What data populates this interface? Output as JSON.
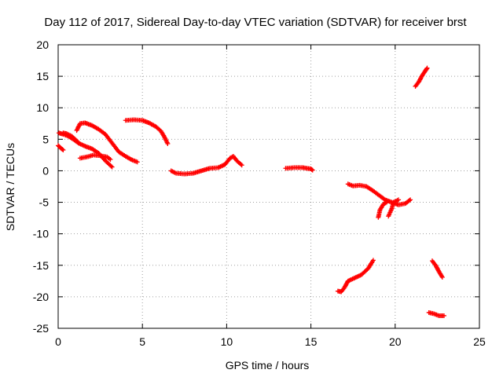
{
  "chart_data": {
    "type": "scatter",
    "title": "Day 112 of 2017, Sidereal Day-to-day VTEC variation (SDTVAR) for receiver brst",
    "xlabel": "GPS time / hours",
    "ylabel": "SDTVAR / TECUs",
    "xlim": [
      0,
      25
    ],
    "ylim": [
      -25,
      20
    ],
    "x_ticks": [
      0,
      5,
      10,
      15,
      20,
      25
    ],
    "y_ticks": [
      -25,
      -20,
      -15,
      -10,
      -5,
      0,
      5,
      10,
      15,
      20
    ],
    "grid": true,
    "legend": "none",
    "marker": "plus",
    "series_color": "#ff0000",
    "arcs": [
      [
        [
          0.0,
          4.0
        ],
        [
          0.2,
          3.5
        ],
        [
          0.3,
          3.3
        ]
      ],
      [
        [
          0.05,
          6.0
        ],
        [
          0.3,
          5.8
        ],
        [
          0.6,
          5.5
        ],
        [
          0.9,
          5.0
        ],
        [
          1.2,
          4.4
        ],
        [
          1.6,
          3.9
        ],
        [
          2.0,
          3.5
        ],
        [
          2.4,
          2.8
        ],
        [
          2.8,
          1.6
        ],
        [
          3.2,
          0.6
        ]
      ],
      [
        [
          0.3,
          6.0
        ],
        [
          0.5,
          5.9
        ],
        [
          0.8,
          5.5
        ],
        [
          1.0,
          5.0
        ],
        [
          1.2,
          4.5
        ]
      ],
      [
        [
          1.1,
          6.4
        ],
        [
          1.3,
          7.5
        ],
        [
          1.6,
          7.6
        ],
        [
          2.0,
          7.2
        ],
        [
          2.4,
          6.6
        ],
        [
          2.8,
          5.8
        ],
        [
          3.2,
          4.4
        ],
        [
          3.6,
          3.0
        ],
        [
          4.0,
          2.3
        ],
        [
          4.4,
          1.7
        ],
        [
          4.7,
          1.4
        ]
      ],
      [
        [
          1.3,
          2.0
        ],
        [
          1.7,
          2.2
        ],
        [
          2.1,
          2.5
        ],
        [
          2.5,
          2.4
        ],
        [
          2.9,
          2.2
        ],
        [
          3.1,
          1.8
        ]
      ],
      [
        [
          4.0,
          8.0
        ],
        [
          4.5,
          8.1
        ],
        [
          5.0,
          8.0
        ],
        [
          5.4,
          7.6
        ],
        [
          5.8,
          7.0
        ],
        [
          6.1,
          6.3
        ],
        [
          6.3,
          5.4
        ],
        [
          6.5,
          4.3
        ]
      ],
      [
        [
          6.7,
          0.0
        ],
        [
          7.0,
          -0.4
        ],
        [
          7.5,
          -0.5
        ],
        [
          8.0,
          -0.4
        ],
        [
          8.5,
          0.0
        ],
        [
          9.0,
          0.4
        ],
        [
          9.5,
          0.5
        ],
        [
          9.9,
          1.0
        ],
        [
          10.2,
          2.0
        ],
        [
          10.4,
          2.3
        ],
        [
          10.6,
          1.6
        ],
        [
          10.9,
          0.9
        ]
      ],
      [
        [
          13.5,
          0.4
        ],
        [
          14.0,
          0.5
        ],
        [
          14.5,
          0.5
        ],
        [
          15.0,
          0.3
        ],
        [
          15.1,
          0.1
        ]
      ],
      [
        [
          17.2,
          -2.1
        ],
        [
          17.5,
          -2.4
        ],
        [
          17.9,
          -2.3
        ],
        [
          18.3,
          -2.5
        ],
        [
          18.7,
          -3.2
        ],
        [
          19.1,
          -4.0
        ],
        [
          19.4,
          -4.6
        ],
        [
          19.8,
          -5.0
        ],
        [
          20.2,
          -5.4
        ],
        [
          20.6,
          -5.2
        ],
        [
          20.9,
          -4.6
        ]
      ],
      [
        [
          19.0,
          -7.4
        ],
        [
          19.1,
          -6.2
        ],
        [
          19.3,
          -5.3
        ],
        [
          19.5,
          -5.0
        ]
      ],
      [
        [
          19.6,
          -7.2
        ],
        [
          19.8,
          -6.0
        ],
        [
          19.9,
          -5.0
        ],
        [
          20.2,
          -4.6
        ]
      ],
      [
        [
          16.6,
          -19.1
        ],
        [
          16.8,
          -19.2
        ],
        [
          17.0,
          -18.5
        ],
        [
          17.2,
          -17.5
        ],
        [
          17.6,
          -17.0
        ],
        [
          18.0,
          -16.5
        ],
        [
          18.4,
          -15.5
        ],
        [
          18.7,
          -14.2
        ]
      ],
      [
        [
          21.2,
          13.4
        ],
        [
          21.4,
          14.1
        ],
        [
          21.6,
          15.1
        ],
        [
          21.8,
          15.9
        ],
        [
          21.9,
          16.3
        ]
      ],
      [
        [
          22.2,
          -14.3
        ],
        [
          22.4,
          -15.0
        ],
        [
          22.6,
          -16.0
        ],
        [
          22.8,
          -16.9
        ]
      ],
      [
        [
          22.0,
          -22.5
        ],
        [
          22.3,
          -22.7
        ],
        [
          22.6,
          -23.0
        ],
        [
          22.9,
          -23.0
        ]
      ]
    ]
  }
}
